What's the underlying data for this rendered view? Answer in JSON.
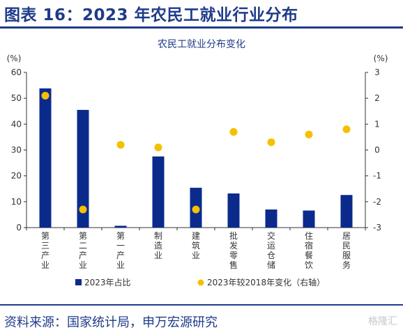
{
  "header": {
    "title": "图表 16：2023 年农民工就业行业分布"
  },
  "footer": {
    "source": "资料来源：国家统计局，申万宏源研究",
    "watermark": "格隆汇"
  },
  "colors": {
    "brand": "#1f3b8a",
    "bar": "#0a2a8c",
    "dot": "#f5c000",
    "axis": "#333333"
  },
  "chart_data": {
    "type": "bar",
    "title": "农民工就业分布变化",
    "y_unit_left": "(%)",
    "y_unit_right": "(%)",
    "categories": [
      "第三产业",
      "第二产业",
      "第一产业",
      "制造业",
      "建筑业",
      "批发零售",
      "交运仓储",
      "住宿餐饮",
      "居民服务"
    ],
    "ylim": [
      0,
      60
    ],
    "yticks": [
      "0",
      "10",
      "20",
      "30",
      "40",
      "50",
      "60"
    ],
    "y2lim": [
      -3,
      3
    ],
    "y2ticks": [
      "-3",
      "-2",
      "-1",
      "0",
      "1",
      "2",
      "3"
    ],
    "series": [
      {
        "name": "2023年占比",
        "kind": "bar",
        "axis": "left",
        "values": [
          53.8,
          45.5,
          0.7,
          27.5,
          15.4,
          13.2,
          7.0,
          6.6,
          12.6
        ]
      },
      {
        "name": "2023年较2018年变化（右轴）",
        "kind": "scatter",
        "axis": "right",
        "values": [
          2.1,
          -2.3,
          0.2,
          0.1,
          -2.3,
          0.7,
          0.3,
          0.6,
          0.8
        ]
      }
    ],
    "legend": "bottom"
  }
}
